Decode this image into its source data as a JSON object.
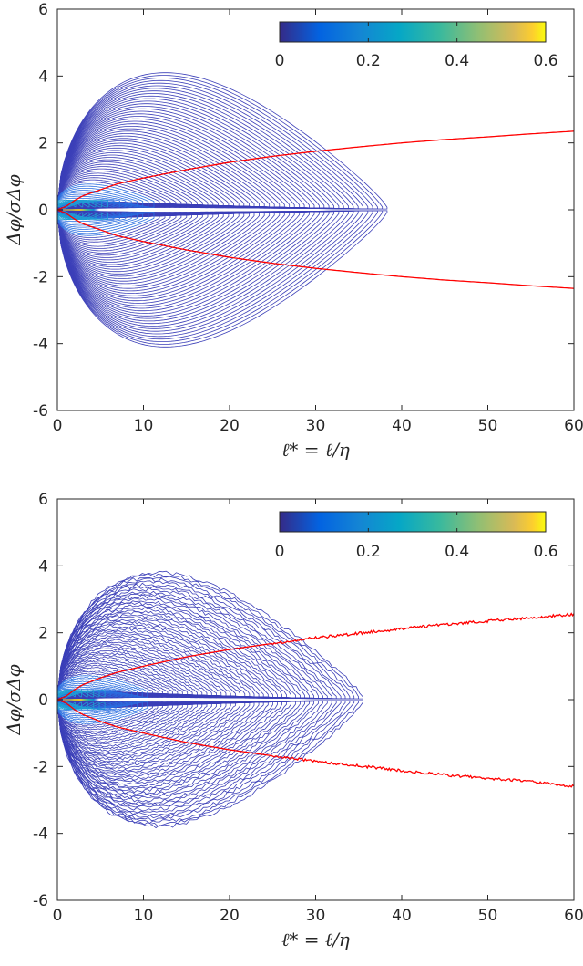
{
  "chart_data": [
    {
      "type": "contour",
      "xlabel": "ℓ* = ℓ/η",
      "ylabel": "Δφ/σΔφ",
      "xlim": [
        0,
        60
      ],
      "ylim": [
        -6,
        6
      ],
      "xticks": [
        "0",
        "10",
        "20",
        "30",
        "40",
        "50",
        "60"
      ],
      "yticks": [
        "-6",
        "-4",
        "-2",
        "0",
        "2",
        "4",
        "6"
      ],
      "colorbar": {
        "ticks": [
          "0",
          "0.2",
          "0.4",
          "0.6"
        ],
        "range": [
          0,
          0.6
        ],
        "colormap": "parula",
        "placement": "top-right"
      },
      "contours": {
        "outer_y_max": 4.1,
        "outer_y_min": -4.1,
        "outer_x_max": 38.3,
        "peak_x": 13,
        "levels_min": 0.005
      },
      "curves": [
        {
          "color": "#ff0000",
          "x": [
            0,
            1,
            2,
            3,
            5,
            7,
            10,
            15,
            20,
            25,
            30,
            35,
            40,
            45,
            50,
            55,
            60
          ],
          "y_upper": [
            0,
            0.1,
            0.28,
            0.42,
            0.6,
            0.78,
            0.95,
            1.2,
            1.42,
            1.6,
            1.75,
            1.88,
            2.0,
            2.1,
            2.18,
            2.27,
            2.35
          ],
          "y_lower": [
            0,
            -0.1,
            -0.28,
            -0.42,
            -0.6,
            -0.78,
            -0.95,
            -1.2,
            -1.42,
            -1.6,
            -1.75,
            -1.88,
            -2.0,
            -2.1,
            -2.18,
            -2.27,
            -2.35
          ]
        }
      ]
    },
    {
      "type": "contour",
      "xlabel": "ℓ* = ℓ/η",
      "ylabel": "Δφ/σΔφ",
      "xlim": [
        0,
        60
      ],
      "ylim": [
        -6,
        6
      ],
      "xticks": [
        "0",
        "10",
        "20",
        "30",
        "40",
        "50",
        "60"
      ],
      "yticks": [
        "-6",
        "-4",
        "-2",
        "0",
        "2",
        "4",
        "6"
      ],
      "colorbar": {
        "ticks": [
          "0",
          "0.2",
          "0.4",
          "0.6"
        ],
        "range": [
          0,
          0.6
        ],
        "colormap": "parula",
        "placement": "top-right"
      },
      "contours": {
        "outer_y_max": 3.8,
        "outer_y_min": -3.8,
        "outer_x_max": 35.5,
        "peak_x": 13,
        "levels_min": 0.005
      },
      "curves": [
        {
          "color": "#ff0000",
          "x": [
            0,
            1,
            2,
            3,
            5,
            7,
            10,
            15,
            20,
            25,
            30,
            35,
            40,
            45,
            50,
            55,
            60
          ],
          "y_upper": [
            0,
            0.1,
            0.3,
            0.45,
            0.65,
            0.82,
            1.0,
            1.28,
            1.5,
            1.68,
            1.85,
            1.98,
            2.12,
            2.25,
            2.35,
            2.45,
            2.55
          ],
          "y_lower": [
            0,
            -0.1,
            -0.3,
            -0.45,
            -0.65,
            -0.82,
            -1.0,
            -1.28,
            -1.5,
            -1.68,
            -1.85,
            -1.98,
            -2.12,
            -2.25,
            -2.35,
            -2.45,
            -2.6
          ]
        }
      ]
    }
  ]
}
